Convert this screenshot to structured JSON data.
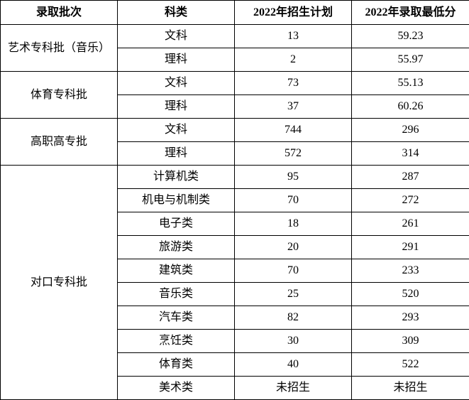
{
  "chart_data": {
    "type": "table",
    "columns": [
      "录取批次",
      "科类",
      "2022年招生计划",
      "2022年录取最低分"
    ],
    "groups": [
      {
        "batch": "艺术专科批（音乐）",
        "rows": [
          {
            "category": "文科",
            "plan": "13",
            "min_score": "59.23"
          },
          {
            "category": "理科",
            "plan": "2",
            "min_score": "55.97"
          }
        ]
      },
      {
        "batch": "体育专科批",
        "rows": [
          {
            "category": "文科",
            "plan": "73",
            "min_score": "55.13"
          },
          {
            "category": "理科",
            "plan": "37",
            "min_score": "60.26"
          }
        ]
      },
      {
        "batch": "高职高专批",
        "rows": [
          {
            "category": "文科",
            "plan": "744",
            "min_score": "296"
          },
          {
            "category": "理科",
            "plan": "572",
            "min_score": "314"
          }
        ]
      },
      {
        "batch": "对口专科批",
        "rows": [
          {
            "category": "计算机类",
            "plan": "95",
            "min_score": "287"
          },
          {
            "category": "机电与机制类",
            "plan": "70",
            "min_score": "272"
          },
          {
            "category": "电子类",
            "plan": "18",
            "min_score": "261"
          },
          {
            "category": "旅游类",
            "plan": "20",
            "min_score": "291"
          },
          {
            "category": "建筑类",
            "plan": "70",
            "min_score": "233"
          },
          {
            "category": "音乐类",
            "plan": "25",
            "min_score": "520"
          },
          {
            "category": "汽车类",
            "plan": "82",
            "min_score": "293"
          },
          {
            "category": "烹饪类",
            "plan": "30",
            "min_score": "309"
          },
          {
            "category": "体育类",
            "plan": "40",
            "min_score": "522"
          },
          {
            "category": "美术类",
            "plan": "未招生",
            "min_score": "未招生"
          }
        ]
      }
    ],
    "colors": {
      "border": "#000000",
      "background": "#ffffff",
      "text": "#000000"
    }
  }
}
